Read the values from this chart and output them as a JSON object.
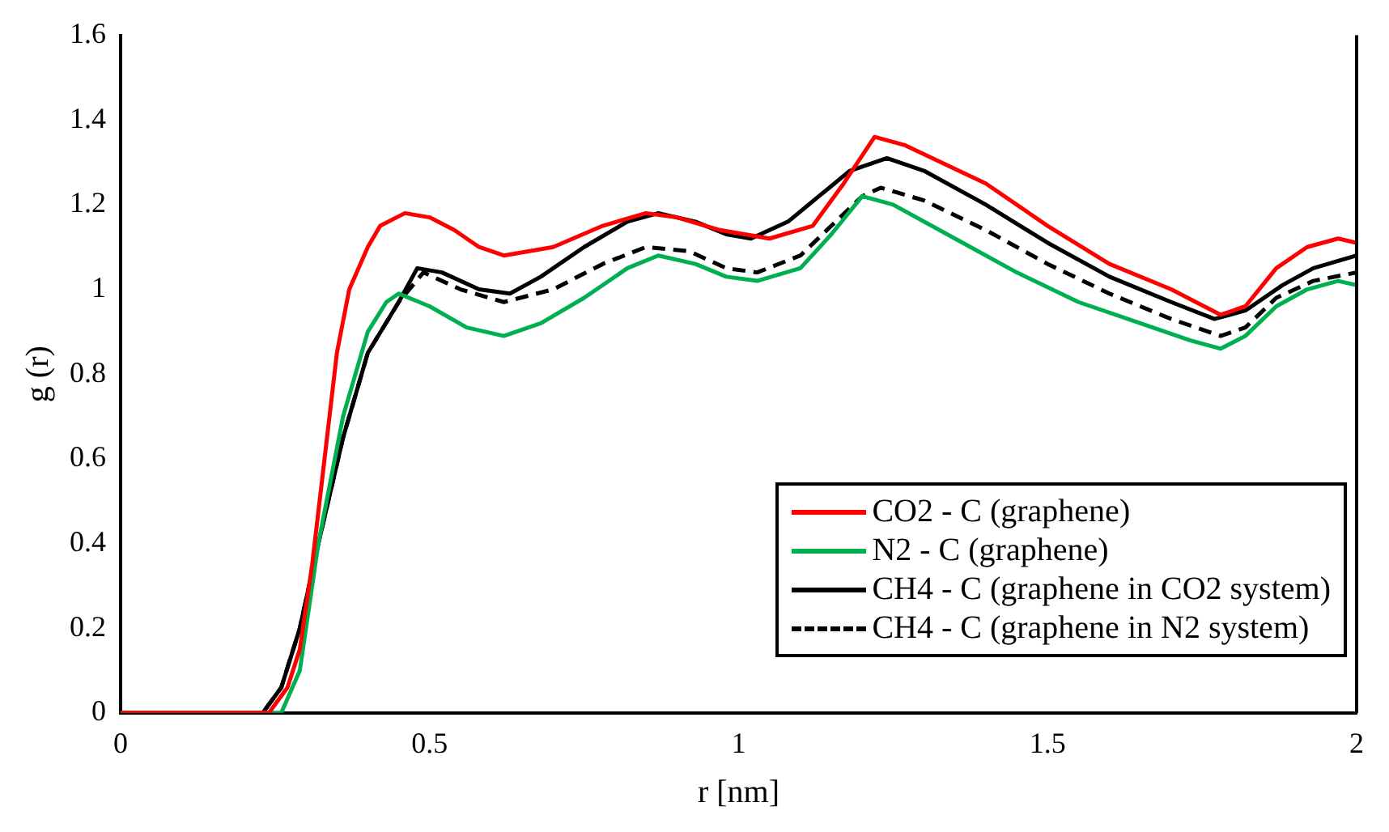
{
  "chart_data": {
    "type": "line",
    "xlabel": "r [nm]",
    "ylabel": "g (r)",
    "xlim": [
      0,
      2
    ],
    "ylim": [
      0,
      1.6
    ],
    "xticks": [
      0,
      0.5,
      1,
      1.5,
      2
    ],
    "yticks": [
      0,
      0.2,
      0.4,
      0.6,
      0.8,
      1,
      1.2,
      1.4,
      1.6
    ],
    "grid": false,
    "legend": "bottom right",
    "marker": "none",
    "series": [
      {
        "name": "CO2 - C (graphene)",
        "color": "#ff0000",
        "line_style": "solid",
        "x": [
          0,
          0.2,
          0.24,
          0.27,
          0.29,
          0.31,
          0.33,
          0.35,
          0.37,
          0.4,
          0.42,
          0.46,
          0.5,
          0.54,
          0.58,
          0.62,
          0.66,
          0.7,
          0.78,
          0.85,
          0.9,
          0.97,
          1.05,
          1.12,
          1.17,
          1.22,
          1.27,
          1.4,
          1.5,
          1.6,
          1.7,
          1.78,
          1.82,
          1.87,
          1.92,
          1.97,
          2
        ],
        "values": [
          0,
          0,
          0,
          0.06,
          0.15,
          0.35,
          0.6,
          0.85,
          1.0,
          1.1,
          1.15,
          1.18,
          1.17,
          1.14,
          1.1,
          1.08,
          1.09,
          1.1,
          1.15,
          1.18,
          1.17,
          1.14,
          1.12,
          1.15,
          1.25,
          1.36,
          1.34,
          1.25,
          1.15,
          1.06,
          1.0,
          0.94,
          0.96,
          1.05,
          1.1,
          1.12,
          1.11
        ]
      },
      {
        "name": "N2 - C (graphene)",
        "color": "#00b050",
        "line_style": "solid",
        "x": [
          0,
          0.2,
          0.26,
          0.29,
          0.32,
          0.36,
          0.4,
          0.43,
          0.45,
          0.5,
          0.56,
          0.62,
          0.68,
          0.75,
          0.82,
          0.87,
          0.93,
          0.98,
          1.03,
          1.1,
          1.15,
          1.2,
          1.25,
          1.35,
          1.45,
          1.55,
          1.65,
          1.73,
          1.78,
          1.82,
          1.87,
          1.92,
          1.97,
          2
        ],
        "values": [
          0,
          0,
          0,
          0.1,
          0.4,
          0.7,
          0.9,
          0.97,
          0.99,
          0.96,
          0.91,
          0.89,
          0.92,
          0.98,
          1.05,
          1.08,
          1.06,
          1.03,
          1.02,
          1.05,
          1.13,
          1.22,
          1.2,
          1.12,
          1.04,
          0.97,
          0.92,
          0.88,
          0.86,
          0.89,
          0.96,
          1.0,
          1.02,
          1.01
        ]
      },
      {
        "name": "CH4 - C (graphene in CO2 system)",
        "color": "#000000",
        "line_style": "solid",
        "x": [
          0,
          0.2,
          0.23,
          0.26,
          0.29,
          0.32,
          0.36,
          0.4,
          0.45,
          0.48,
          0.52,
          0.58,
          0.63,
          0.68,
          0.75,
          0.82,
          0.87,
          0.93,
          0.98,
          1.02,
          1.08,
          1.13,
          1.18,
          1.24,
          1.3,
          1.4,
          1.5,
          1.6,
          1.7,
          1.77,
          1.82,
          1.88,
          1.93,
          2
        ],
        "values": [
          0,
          0,
          0,
          0.06,
          0.2,
          0.4,
          0.65,
          0.85,
          0.97,
          1.05,
          1.04,
          1.0,
          0.99,
          1.03,
          1.1,
          1.16,
          1.18,
          1.16,
          1.13,
          1.12,
          1.16,
          1.22,
          1.28,
          1.31,
          1.28,
          1.2,
          1.11,
          1.03,
          0.97,
          0.93,
          0.95,
          1.01,
          1.05,
          1.08
        ]
      },
      {
        "name": "CH4 - C (graphene in N2 system)",
        "color": "#000000",
        "line_style": "dashed",
        "x": [
          0,
          0.2,
          0.23,
          0.26,
          0.29,
          0.32,
          0.36,
          0.4,
          0.45,
          0.49,
          0.55,
          0.62,
          0.7,
          0.78,
          0.85,
          0.92,
          0.98,
          1.03,
          1.1,
          1.15,
          1.2,
          1.23,
          1.3,
          1.4,
          1.5,
          1.6,
          1.7,
          1.78,
          1.82,
          1.87,
          1.93,
          2
        ],
        "values": [
          0,
          0,
          0,
          0.06,
          0.2,
          0.4,
          0.65,
          0.85,
          0.97,
          1.04,
          1.0,
          0.97,
          1.0,
          1.06,
          1.1,
          1.09,
          1.05,
          1.04,
          1.08,
          1.15,
          1.22,
          1.24,
          1.21,
          1.14,
          1.06,
          0.99,
          0.93,
          0.89,
          0.91,
          0.98,
          1.02,
          1.04
        ]
      }
    ]
  }
}
